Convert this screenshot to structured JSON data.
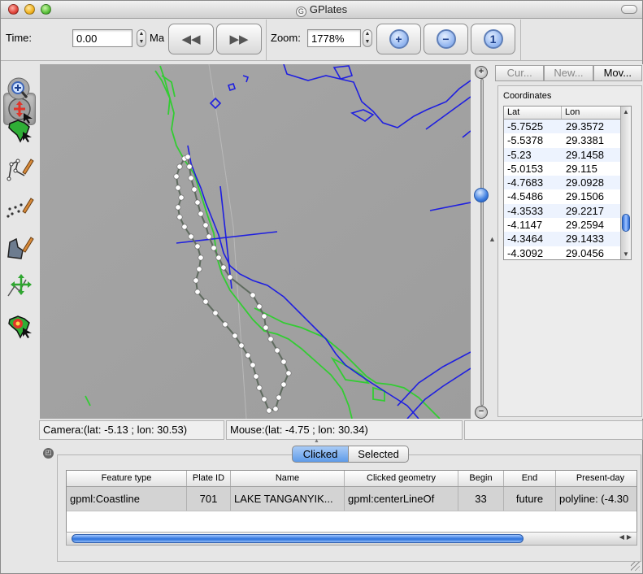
{
  "window": {
    "title": "GPlates",
    "app_icon": "gplates-logo-icon"
  },
  "toolbar": {
    "time_label": "Time:",
    "time_value": "0.00",
    "time_unit": "Ma",
    "zoom_label": "Zoom:",
    "zoom_value": "1778%"
  },
  "palette": {
    "tools": [
      {
        "name": "drag-globe-tool-icon",
        "active": true
      },
      {
        "name": "zoom-globe-tool-icon",
        "active": false
      },
      {
        "name": "choose-feature-tool-icon",
        "active": false
      },
      {
        "name": "digitise-polyline-tool-icon",
        "active": false
      },
      {
        "name": "digitise-multipoint-tool-icon",
        "active": false
      },
      {
        "name": "digitise-polygon-tool-icon",
        "active": false
      },
      {
        "name": "move-vertex-tool-icon",
        "active": false
      },
      {
        "name": "manipulate-pole-tool-icon",
        "active": false
      }
    ]
  },
  "zoom_slider": {
    "level": 0.35
  },
  "right_panel": {
    "tabs": [
      "Cur...",
      "New...",
      "Mov..."
    ],
    "active_tab": 2,
    "section_title": "Coordinates",
    "columns": [
      "Lat",
      "Lon"
    ],
    "rows": [
      [
        "-5.7525",
        "29.3572"
      ],
      [
        "-5.5378",
        "29.3381"
      ],
      [
        "-5.23",
        "29.1458"
      ],
      [
        "-5.0153",
        "29.115"
      ],
      [
        "-4.7683",
        "29.0928"
      ],
      [
        "-4.5486",
        "29.1506"
      ],
      [
        "-4.3533",
        "29.2217"
      ],
      [
        "-4.1147",
        "29.2594"
      ],
      [
        "-4.3464",
        "29.1433"
      ],
      [
        "-4.3092",
        "29.0456"
      ]
    ]
  },
  "status": {
    "camera": "Camera:(lat: -5.13 ; lon: 30.53)",
    "mouse": "Mouse:(lat: -4.75 ; lon: 30.34)"
  },
  "dock": {
    "segments": [
      "Clicked",
      "Selected"
    ],
    "active_segment": 0,
    "columns": [
      "Feature type",
      "Plate ID",
      "Name",
      "Clicked geometry",
      "Begin",
      "End",
      "Present-day"
    ],
    "rows": [
      [
        "gpml:Coastline",
        "701",
        "LAKE TANGANYIK...",
        "gpml:centerLineOf",
        "33",
        "future",
        "polyline: (-4.30"
      ]
    ]
  },
  "colors": {
    "coastline_green": "#33cc33",
    "feature_blue": "#1f1fe0",
    "vertex_white": "#ffffff",
    "canvas_bg": "#a2a2a2"
  }
}
